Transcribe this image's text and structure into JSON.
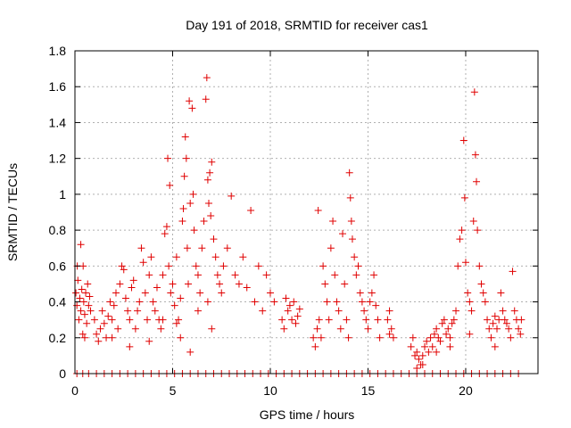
{
  "chart_data": {
    "type": "scatter",
    "title": "Day 191 of 2018, SRMTID for receiver cas1",
    "xlabel": "GPS time / hours",
    "ylabel": "SRMTID / TECUs",
    "xlim": [
      0,
      23.7
    ],
    "ylim": [
      0,
      1.8
    ],
    "xticks": [
      0,
      5,
      10,
      15,
      20
    ],
    "xtick_labels": [
      "0",
      "5",
      "10",
      "15",
      "20"
    ],
    "yticks": [
      0,
      0.2,
      0.4,
      0.6,
      0.8,
      1.0,
      1.2,
      1.4,
      1.6,
      1.8
    ],
    "ytick_labels": [
      "0",
      "0.2",
      "0.4",
      "0.6",
      "0.8",
      "1",
      "1.2",
      "1.4",
      "1.6",
      "1.8"
    ],
    "grid": true,
    "marker": "+",
    "color": "#e00000",
    "series": [
      {
        "name": "cas1",
        "points": [
          [
            0.05,
            0.45
          ],
          [
            0.1,
            0.38
          ],
          [
            0.12,
            0.6
          ],
          [
            0.15,
            0.52
          ],
          [
            0.2,
            0.3
          ],
          [
            0.25,
            0.42
          ],
          [
            0.3,
            0.35
          ],
          [
            0.35,
            0.47
          ],
          [
            0.4,
            0.22
          ],
          [
            0.42,
            0.6
          ],
          [
            0.45,
            0.4
          ],
          [
            0.5,
            0.33
          ],
          [
            0.55,
            0.45
          ],
          [
            0.6,
            0.28
          ],
          [
            0.65,
            0.5
          ],
          [
            0.7,
            0.38
          ],
          [
            0.75,
            0.43
          ],
          [
            0.8,
            0.35
          ],
          [
            0.3,
            0.72
          ],
          [
            0.5,
            0.2
          ],
          [
            1.0,
            0.3
          ],
          [
            1.1,
            0.22
          ],
          [
            1.2,
            0.18
          ],
          [
            1.3,
            0.25
          ],
          [
            1.4,
            0.35
          ],
          [
            1.5,
            0.28
          ],
          [
            1.6,
            0.2
          ],
          [
            1.7,
            0.32
          ],
          [
            1.8,
            0.4
          ],
          [
            1.9,
            0.3
          ],
          [
            2.0,
            0.38
          ],
          [
            2.1,
            0.45
          ],
          [
            2.2,
            0.25
          ],
          [
            2.3,
            0.5
          ],
          [
            2.4,
            0.6
          ],
          [
            2.5,
            0.58
          ],
          [
            2.6,
            0.42
          ],
          [
            2.7,
            0.35
          ],
          [
            2.8,
            0.3
          ],
          [
            2.9,
            0.48
          ],
          [
            3.0,
            0.52
          ],
          [
            3.1,
            0.25
          ],
          [
            3.2,
            0.35
          ],
          [
            3.3,
            0.4
          ],
          [
            3.4,
            0.7
          ],
          [
            3.5,
            0.62
          ],
          [
            3.6,
            0.45
          ],
          [
            3.7,
            0.3
          ],
          [
            3.8,
            0.55
          ],
          [
            3.9,
            0.65
          ],
          [
            4.0,
            0.4
          ],
          [
            4.1,
            0.35
          ],
          [
            4.2,
            0.48
          ],
          [
            4.3,
            0.3
          ],
          [
            4.4,
            0.25
          ],
          [
            4.5,
            0.55
          ],
          [
            4.6,
            0.78
          ],
          [
            4.7,
            0.82
          ],
          [
            4.75,
            1.2
          ],
          [
            4.8,
            0.6
          ],
          [
            4.85,
            1.05
          ],
          [
            4.9,
            0.45
          ],
          [
            5.0,
            0.5
          ],
          [
            5.1,
            0.38
          ],
          [
            5.2,
            0.65
          ],
          [
            5.3,
            0.3
          ],
          [
            5.4,
            0.42
          ],
          [
            5.5,
            0.85
          ],
          [
            5.55,
            0.92
          ],
          [
            5.6,
            1.1
          ],
          [
            5.65,
            1.32
          ],
          [
            5.7,
            1.2
          ],
          [
            5.75,
            0.7
          ],
          [
            5.8,
            0.5
          ],
          [
            5.85,
            1.52
          ],
          [
            5.9,
            0.95
          ],
          [
            6.0,
            1.48
          ],
          [
            6.05,
            1.0
          ],
          [
            6.1,
            0.8
          ],
          [
            6.2,
            0.6
          ],
          [
            6.3,
            0.55
          ],
          [
            6.4,
            0.45
          ],
          [
            6.5,
            0.7
          ],
          [
            6.6,
            0.85
          ],
          [
            6.7,
            1.53
          ],
          [
            6.75,
            1.65
          ],
          [
            6.8,
            1.08
          ],
          [
            6.85,
            0.95
          ],
          [
            6.9,
            1.12
          ],
          [
            6.95,
            0.88
          ],
          [
            7.0,
            1.18
          ],
          [
            7.1,
            0.75
          ],
          [
            7.2,
            0.65
          ],
          [
            7.3,
            0.55
          ],
          [
            7.4,
            0.5
          ],
          [
            7.5,
            0.45
          ],
          [
            7.6,
            0.6
          ],
          [
            7.8,
            0.7
          ],
          [
            8.0,
            0.99
          ],
          [
            8.2,
            0.55
          ],
          [
            8.4,
            0.5
          ],
          [
            8.6,
            0.65
          ],
          [
            8.8,
            0.48
          ],
          [
            9.0,
            0.91
          ],
          [
            9.2,
            0.4
          ],
          [
            9.4,
            0.6
          ],
          [
            9.6,
            0.35
          ],
          [
            9.8,
            0.55
          ],
          [
            10.0,
            0.45
          ],
          [
            10.2,
            0.4
          ],
          [
            5.2,
            0.28
          ],
          [
            5.4,
            0.2
          ],
          [
            5.9,
            0.12
          ],
          [
            6.3,
            0.35
          ],
          [
            7.0,
            0.25
          ],
          [
            6.8,
            0.4
          ],
          [
            4.5,
            0.3
          ],
          [
            3.8,
            0.18
          ],
          [
            2.8,
            0.15
          ],
          [
            1.9,
            0.2
          ],
          [
            10.6,
            0.3
          ],
          [
            10.7,
            0.25
          ],
          [
            10.8,
            0.42
          ],
          [
            10.9,
            0.35
          ],
          [
            11.0,
            0.38
          ],
          [
            11.1,
            0.3
          ],
          [
            11.2,
            0.4
          ],
          [
            11.3,
            0.28
          ],
          [
            11.4,
            0.32
          ],
          [
            11.5,
            0.36
          ],
          [
            12.2,
            0.2
          ],
          [
            12.3,
            0.15
          ],
          [
            12.4,
            0.25
          ],
          [
            12.45,
            0.91
          ],
          [
            12.5,
            0.3
          ],
          [
            12.6,
            0.2
          ],
          [
            12.7,
            0.6
          ],
          [
            12.8,
            0.5
          ],
          [
            12.9,
            0.4
          ],
          [
            13.0,
            0.3
          ],
          [
            13.1,
            0.7
          ],
          [
            13.2,
            0.85
          ],
          [
            13.3,
            0.55
          ],
          [
            13.4,
            0.4
          ],
          [
            13.5,
            0.35
          ],
          [
            13.6,
            0.25
          ],
          [
            13.7,
            0.78
          ],
          [
            13.8,
            0.5
          ],
          [
            13.9,
            0.3
          ],
          [
            14.0,
            0.2
          ],
          [
            14.05,
            1.12
          ],
          [
            14.1,
            0.98
          ],
          [
            14.15,
            0.85
          ],
          [
            14.2,
            0.75
          ],
          [
            14.3,
            0.65
          ],
          [
            14.4,
            0.55
          ],
          [
            14.5,
            0.6
          ],
          [
            14.6,
            0.45
          ],
          [
            14.7,
            0.4
          ],
          [
            14.8,
            0.35
          ],
          [
            14.9,
            0.3
          ],
          [
            15.0,
            0.25
          ],
          [
            15.1,
            0.4
          ],
          [
            15.2,
            0.45
          ],
          [
            15.3,
            0.55
          ],
          [
            15.4,
            0.38
          ],
          [
            15.5,
            0.3
          ],
          [
            15.6,
            0.2
          ],
          [
            16.0,
            0.3
          ],
          [
            16.1,
            0.35
          ],
          [
            16.2,
            0.25
          ],
          [
            16.3,
            0.2
          ],
          [
            17.2,
            0.15
          ],
          [
            17.3,
            0.2
          ],
          [
            17.4,
            0.1
          ],
          [
            17.5,
            0.12
          ],
          [
            17.6,
            0.08
          ],
          [
            17.7,
            0.05
          ],
          [
            17.8,
            0.1
          ],
          [
            17.9,
            0.15
          ],
          [
            18.0,
            0.18
          ],
          [
            18.1,
            0.12
          ],
          [
            18.2,
            0.2
          ],
          [
            18.3,
            0.15
          ],
          [
            18.4,
            0.22
          ],
          [
            18.5,
            0.25
          ],
          [
            18.6,
            0.2
          ],
          [
            18.7,
            0.18
          ],
          [
            18.8,
            0.28
          ],
          [
            18.9,
            0.3
          ],
          [
            19.0,
            0.22
          ],
          [
            19.1,
            0.25
          ],
          [
            19.2,
            0.2
          ],
          [
            19.3,
            0.28
          ],
          [
            19.4,
            0.3
          ],
          [
            19.5,
            0.35
          ],
          [
            19.6,
            0.6
          ],
          [
            19.7,
            0.75
          ],
          [
            19.8,
            0.8
          ],
          [
            19.9,
            1.3
          ],
          [
            19.95,
            0.98
          ],
          [
            20.0,
            0.62
          ],
          [
            20.1,
            0.45
          ],
          [
            20.2,
            0.4
          ],
          [
            20.3,
            0.35
          ],
          [
            20.4,
            0.85
          ],
          [
            20.45,
            1.57
          ],
          [
            20.5,
            1.22
          ],
          [
            20.55,
            1.07
          ],
          [
            20.6,
            0.8
          ],
          [
            20.7,
            0.6
          ],
          [
            20.8,
            0.5
          ],
          [
            20.9,
            0.45
          ],
          [
            21.0,
            0.4
          ],
          [
            21.1,
            0.3
          ],
          [
            21.2,
            0.25
          ],
          [
            21.3,
            0.2
          ],
          [
            21.4,
            0.28
          ],
          [
            21.5,
            0.32
          ],
          [
            21.6,
            0.25
          ],
          [
            21.7,
            0.3
          ],
          [
            21.8,
            0.45
          ],
          [
            21.9,
            0.35
          ],
          [
            22.0,
            0.3
          ],
          [
            22.1,
            0.28
          ],
          [
            22.2,
            0.25
          ],
          [
            22.3,
            0.2
          ],
          [
            22.4,
            0.57
          ],
          [
            22.5,
            0.35
          ],
          [
            22.6,
            0.3
          ],
          [
            22.7,
            0.25
          ],
          [
            22.8,
            0.22
          ],
          [
            22.85,
            0.3
          ],
          [
            18.5,
            0.12
          ],
          [
            19.2,
            0.15
          ],
          [
            20.2,
            0.22
          ],
          [
            21.5,
            0.15
          ],
          [
            17.5,
            0.03
          ],
          [
            17.8,
            0.05
          ],
          [
            16.1,
            0.22
          ],
          [
            0.1,
            0
          ],
          [
            0.4,
            0
          ],
          [
            0.7,
            0
          ],
          [
            1.1,
            0
          ],
          [
            1.5,
            0
          ],
          [
            1.9,
            0
          ],
          [
            2.3,
            0
          ],
          [
            2.7,
            0
          ],
          [
            3.1,
            0
          ],
          [
            3.5,
            0
          ],
          [
            3.9,
            0
          ],
          [
            4.3,
            0
          ],
          [
            4.7,
            0
          ],
          [
            5.1,
            0
          ],
          [
            5.5,
            0
          ],
          [
            5.9,
            0
          ],
          [
            6.3,
            0
          ],
          [
            6.7,
            0
          ],
          [
            7.1,
            0
          ],
          [
            7.5,
            0
          ],
          [
            7.9,
            0
          ],
          [
            8.3,
            0
          ],
          [
            8.7,
            0
          ],
          [
            9.1,
            0
          ],
          [
            9.5,
            0
          ],
          [
            9.9,
            0
          ],
          [
            10.3,
            0
          ],
          [
            10.7,
            0
          ],
          [
            11.1,
            0
          ],
          [
            11.5,
            0
          ],
          [
            11.9,
            0
          ],
          [
            12.3,
            0
          ],
          [
            12.7,
            0
          ],
          [
            13.1,
            0
          ],
          [
            13.5,
            0
          ],
          [
            13.9,
            0
          ],
          [
            14.3,
            0
          ],
          [
            14.7,
            0
          ],
          [
            15.1,
            0
          ],
          [
            15.5,
            0
          ],
          [
            15.9,
            0
          ],
          [
            16.3,
            0
          ],
          [
            16.7,
            0
          ],
          [
            17.1,
            0
          ],
          [
            17.5,
            0
          ],
          [
            17.9,
            0
          ],
          [
            18.3,
            0
          ],
          [
            18.7,
            0
          ],
          [
            19.1,
            0
          ],
          [
            19.5,
            0
          ],
          [
            19.9,
            0
          ],
          [
            20.3,
            0
          ],
          [
            20.7,
            0
          ],
          [
            21.1,
            0
          ],
          [
            21.5,
            0
          ],
          [
            21.9,
            0
          ],
          [
            22.3,
            0
          ],
          [
            22.7,
            0
          ]
        ]
      }
    ]
  }
}
